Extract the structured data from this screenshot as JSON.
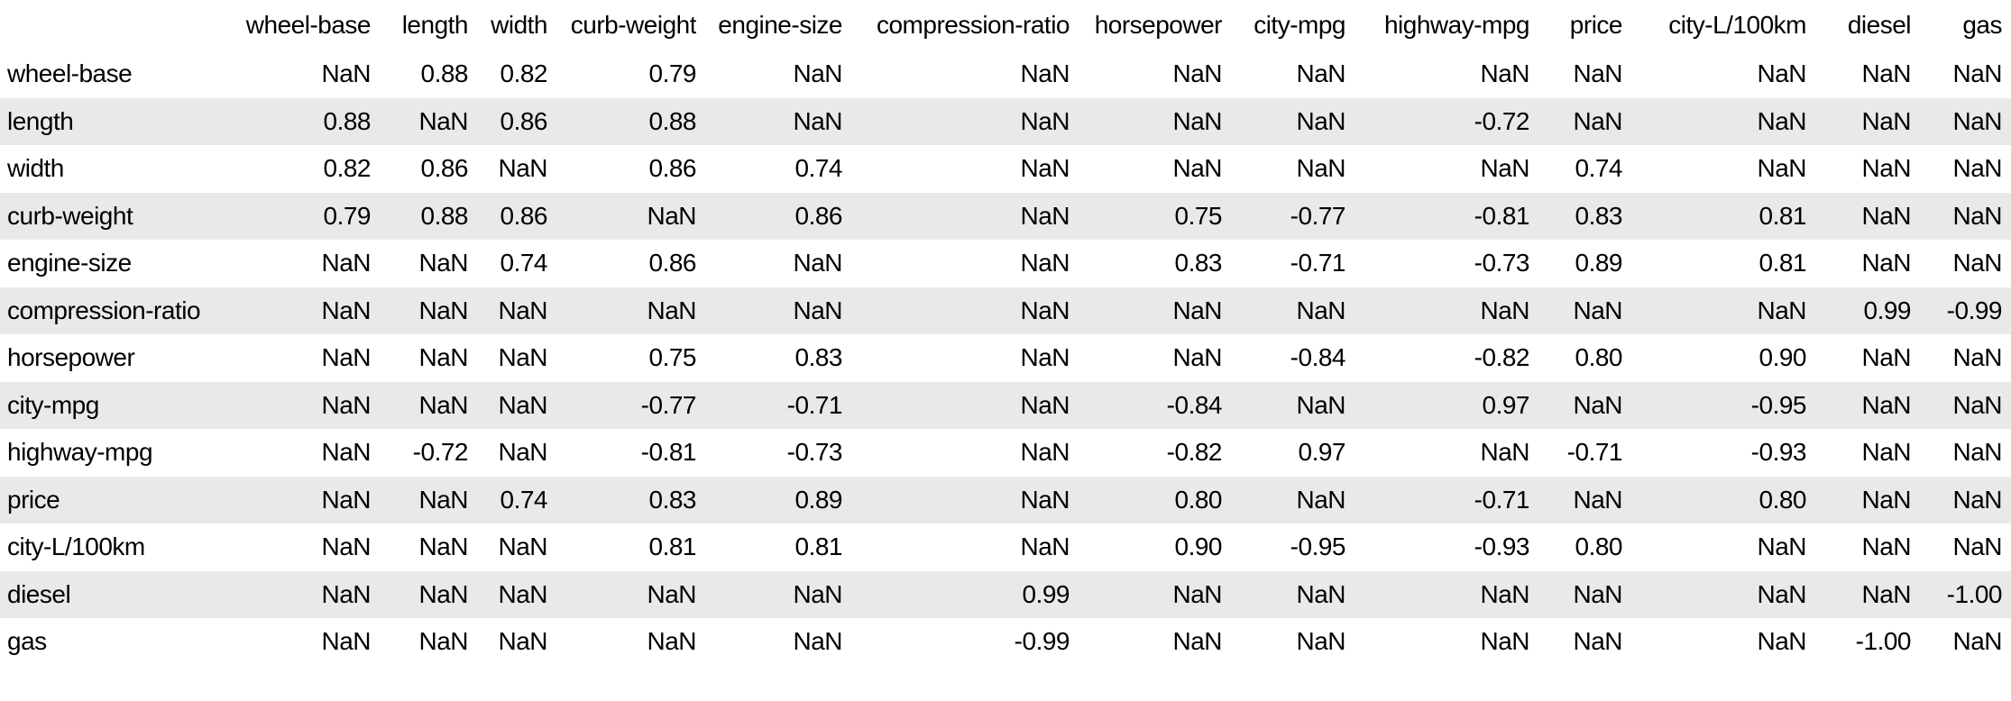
{
  "chart_data": {
    "type": "table",
    "columns": [
      "wheel-base",
      "length",
      "width",
      "curb-weight",
      "engine-size",
      "compression-ratio",
      "horsepower",
      "city-mpg",
      "highway-mpg",
      "price",
      "city-L/100km",
      "diesel",
      "gas"
    ],
    "row_labels": [
      "wheel-base",
      "length",
      "width",
      "curb-weight",
      "engine-size",
      "compression-ratio",
      "horsepower",
      "city-mpg",
      "highway-mpg",
      "price",
      "city-L/100km",
      "diesel",
      "gas"
    ],
    "matrix": [
      [
        "NaN",
        "0.88",
        "0.82",
        "0.79",
        "NaN",
        "NaN",
        "NaN",
        "NaN",
        "NaN",
        "NaN",
        "NaN",
        "NaN",
        "NaN"
      ],
      [
        "0.88",
        "NaN",
        "0.86",
        "0.88",
        "NaN",
        "NaN",
        "NaN",
        "NaN",
        "-0.72",
        "NaN",
        "NaN",
        "NaN",
        "NaN"
      ],
      [
        "0.82",
        "0.86",
        "NaN",
        "0.86",
        "0.74",
        "NaN",
        "NaN",
        "NaN",
        "NaN",
        "0.74",
        "NaN",
        "NaN",
        "NaN"
      ],
      [
        "0.79",
        "0.88",
        "0.86",
        "NaN",
        "0.86",
        "NaN",
        "0.75",
        "-0.77",
        "-0.81",
        "0.83",
        "0.81",
        "NaN",
        "NaN"
      ],
      [
        "NaN",
        "NaN",
        "0.74",
        "0.86",
        "NaN",
        "NaN",
        "0.83",
        "-0.71",
        "-0.73",
        "0.89",
        "0.81",
        "NaN",
        "NaN"
      ],
      [
        "NaN",
        "NaN",
        "NaN",
        "NaN",
        "NaN",
        "NaN",
        "NaN",
        "NaN",
        "NaN",
        "NaN",
        "NaN",
        "0.99",
        "-0.99"
      ],
      [
        "NaN",
        "NaN",
        "NaN",
        "0.75",
        "0.83",
        "NaN",
        "NaN",
        "-0.84",
        "-0.82",
        "0.80",
        "0.90",
        "NaN",
        "NaN"
      ],
      [
        "NaN",
        "NaN",
        "NaN",
        "-0.77",
        "-0.71",
        "NaN",
        "-0.84",
        "NaN",
        "0.97",
        "NaN",
        "-0.95",
        "NaN",
        "NaN"
      ],
      [
        "NaN",
        "-0.72",
        "NaN",
        "-0.81",
        "-0.73",
        "NaN",
        "-0.82",
        "0.97",
        "NaN",
        "-0.71",
        "-0.93",
        "NaN",
        "NaN"
      ],
      [
        "NaN",
        "NaN",
        "0.74",
        "0.83",
        "0.89",
        "NaN",
        "0.80",
        "NaN",
        "-0.71",
        "NaN",
        "0.80",
        "NaN",
        "NaN"
      ],
      [
        "NaN",
        "NaN",
        "NaN",
        "0.81",
        "0.81",
        "NaN",
        "0.90",
        "-0.95",
        "-0.93",
        "0.80",
        "NaN",
        "NaN",
        "NaN"
      ],
      [
        "NaN",
        "NaN",
        "NaN",
        "NaN",
        "NaN",
        "0.99",
        "NaN",
        "NaN",
        "NaN",
        "NaN",
        "NaN",
        "NaN",
        "-1.00"
      ],
      [
        "NaN",
        "NaN",
        "NaN",
        "NaN",
        "NaN",
        "-0.99",
        "NaN",
        "NaN",
        "NaN",
        "NaN",
        "NaN",
        "-1.00",
        "NaN"
      ]
    ],
    "layout": {
      "striped": true,
      "stripe_color": "#e9e9e9",
      "background_color": "#ffffff",
      "text_color": "#000000",
      "value_align": "right",
      "index_header": ""
    }
  }
}
